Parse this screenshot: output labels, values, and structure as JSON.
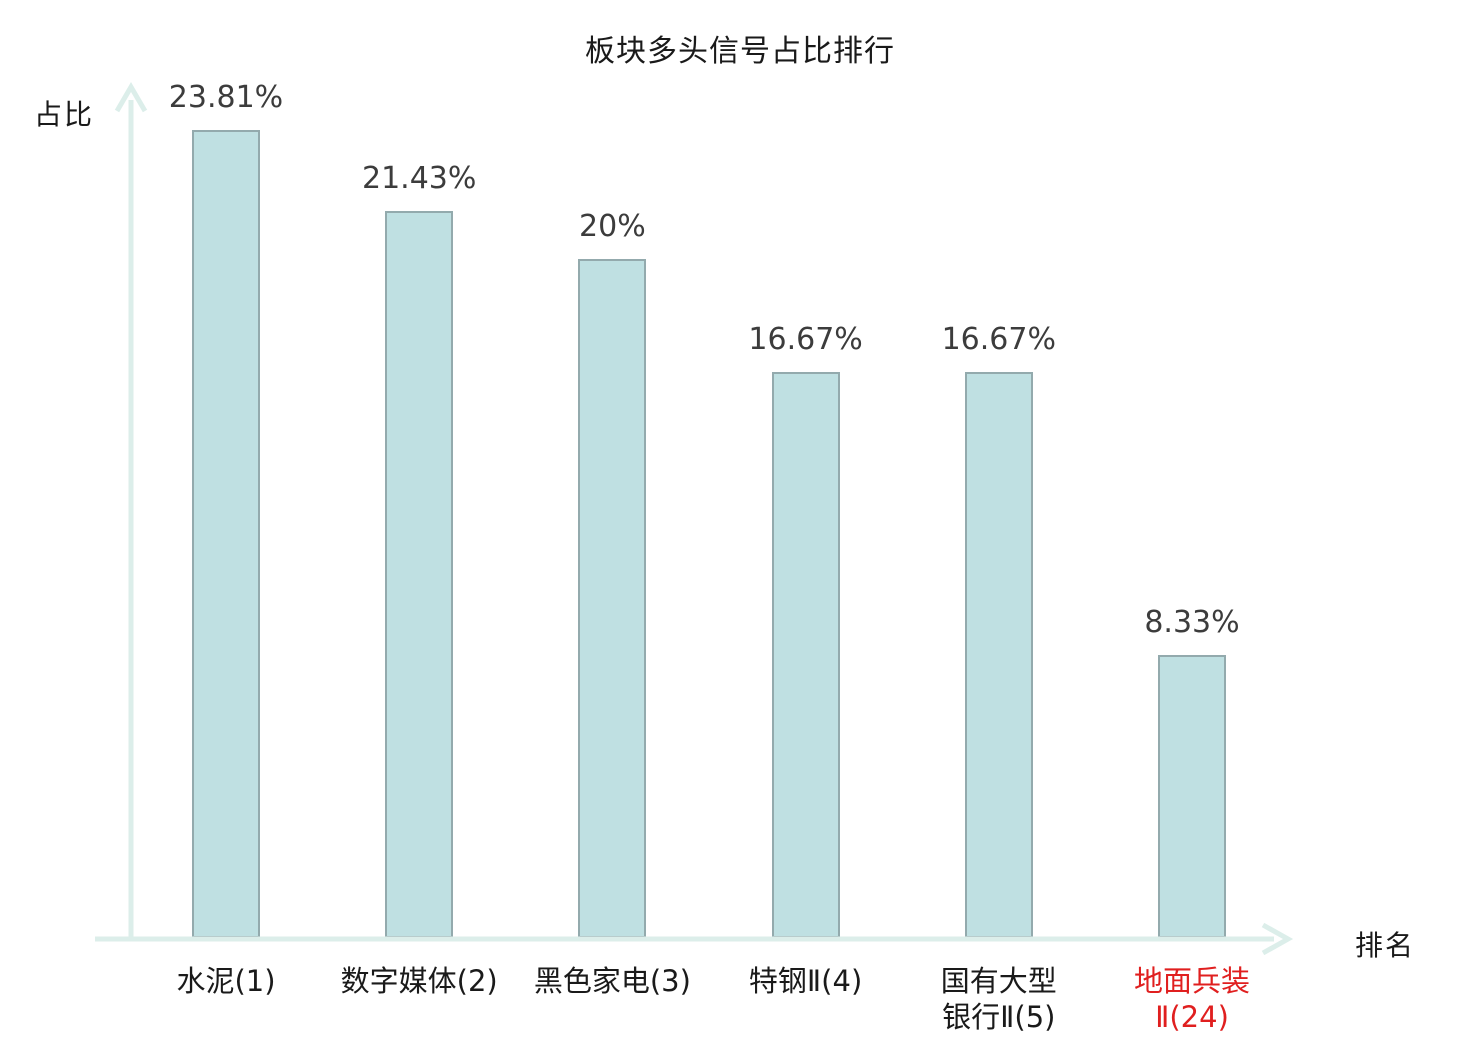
{
  "colors": {
    "axis": "#dceeea",
    "bar_fill": "#bfe0e2",
    "bar_border": "#93aaad",
    "value_text": "#3c3c3c",
    "category_text": "#1a1a1a",
    "highlight_text": "#e01f1f",
    "title_text": "#1a1a1a"
  },
  "chart_data": {
    "type": "bar",
    "title": "板块多头信号占比排行",
    "xlabel": "排名",
    "ylabel": "占比",
    "categories": [
      "水泥(1)",
      "数字媒体(2)",
      "黑色家电(3)",
      "特钢Ⅱ(4)",
      "国有大型银行Ⅱ(5)",
      "地面兵装Ⅱ(24)"
    ],
    "category_lines": [
      [
        "水泥(1)"
      ],
      [
        "数字媒体(2)"
      ],
      [
        "黑色家电(3)"
      ],
      [
        "特钢Ⅱ(4)"
      ],
      [
        "国有大型",
        "银行Ⅱ(5)"
      ],
      [
        "地面兵装",
        "Ⅱ(24)"
      ]
    ],
    "category_colors": [
      "#1a1a1a",
      "#1a1a1a",
      "#1a1a1a",
      "#1a1a1a",
      "#1a1a1a",
      "#e01f1f"
    ],
    "values": [
      23.81,
      21.43,
      20,
      16.67,
      16.67,
      8.33
    ],
    "value_labels": [
      "23.81%",
      "21.43%",
      "20%",
      "16.67%",
      "16.67%",
      "8.33%"
    ],
    "ylim": [
      0,
      23.81
    ],
    "grid": false,
    "legend": null
  }
}
